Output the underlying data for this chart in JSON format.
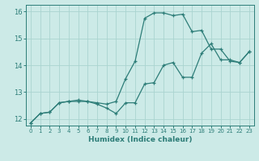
{
  "xlabel": "Humidex (Indice chaleur)",
  "background_color": "#cceae7",
  "line_color": "#2d7d78",
  "grid_color": "#aad4d0",
  "xlim": [
    -0.5,
    23.5
  ],
  "ylim": [
    11.75,
    16.25
  ],
  "yticks": [
    12,
    13,
    14,
    15,
    16
  ],
  "xticks": [
    0,
    1,
    2,
    3,
    4,
    5,
    6,
    7,
    8,
    9,
    10,
    11,
    12,
    13,
    14,
    15,
    16,
    17,
    18,
    19,
    20,
    21,
    22,
    23
  ],
  "line1_x": [
    0,
    1,
    2,
    3,
    4,
    5,
    6,
    7,
    8,
    9,
    10,
    11,
    12,
    13,
    14,
    15,
    16,
    17,
    18,
    19,
    20,
    21,
    22,
    23
  ],
  "line1_y": [
    11.85,
    12.2,
    12.25,
    12.6,
    12.65,
    12.7,
    12.65,
    12.55,
    12.4,
    12.2,
    12.6,
    12.6,
    13.3,
    13.35,
    14.0,
    14.1,
    13.55,
    13.55,
    14.45,
    14.8,
    14.2,
    14.2,
    14.1,
    14.5
  ],
  "line2_x": [
    0,
    1,
    2,
    3,
    4,
    5,
    6,
    7,
    8,
    9,
    10,
    11,
    12,
    13,
    14,
    15,
    16,
    17,
    18,
    19,
    20,
    21,
    22,
    23
  ],
  "line2_y": [
    11.85,
    12.2,
    12.25,
    12.6,
    12.65,
    12.65,
    12.65,
    12.6,
    12.55,
    12.65,
    13.5,
    14.15,
    15.75,
    15.95,
    15.95,
    15.85,
    15.9,
    15.25,
    15.3,
    14.6,
    14.6,
    14.15,
    14.1,
    14.5
  ]
}
